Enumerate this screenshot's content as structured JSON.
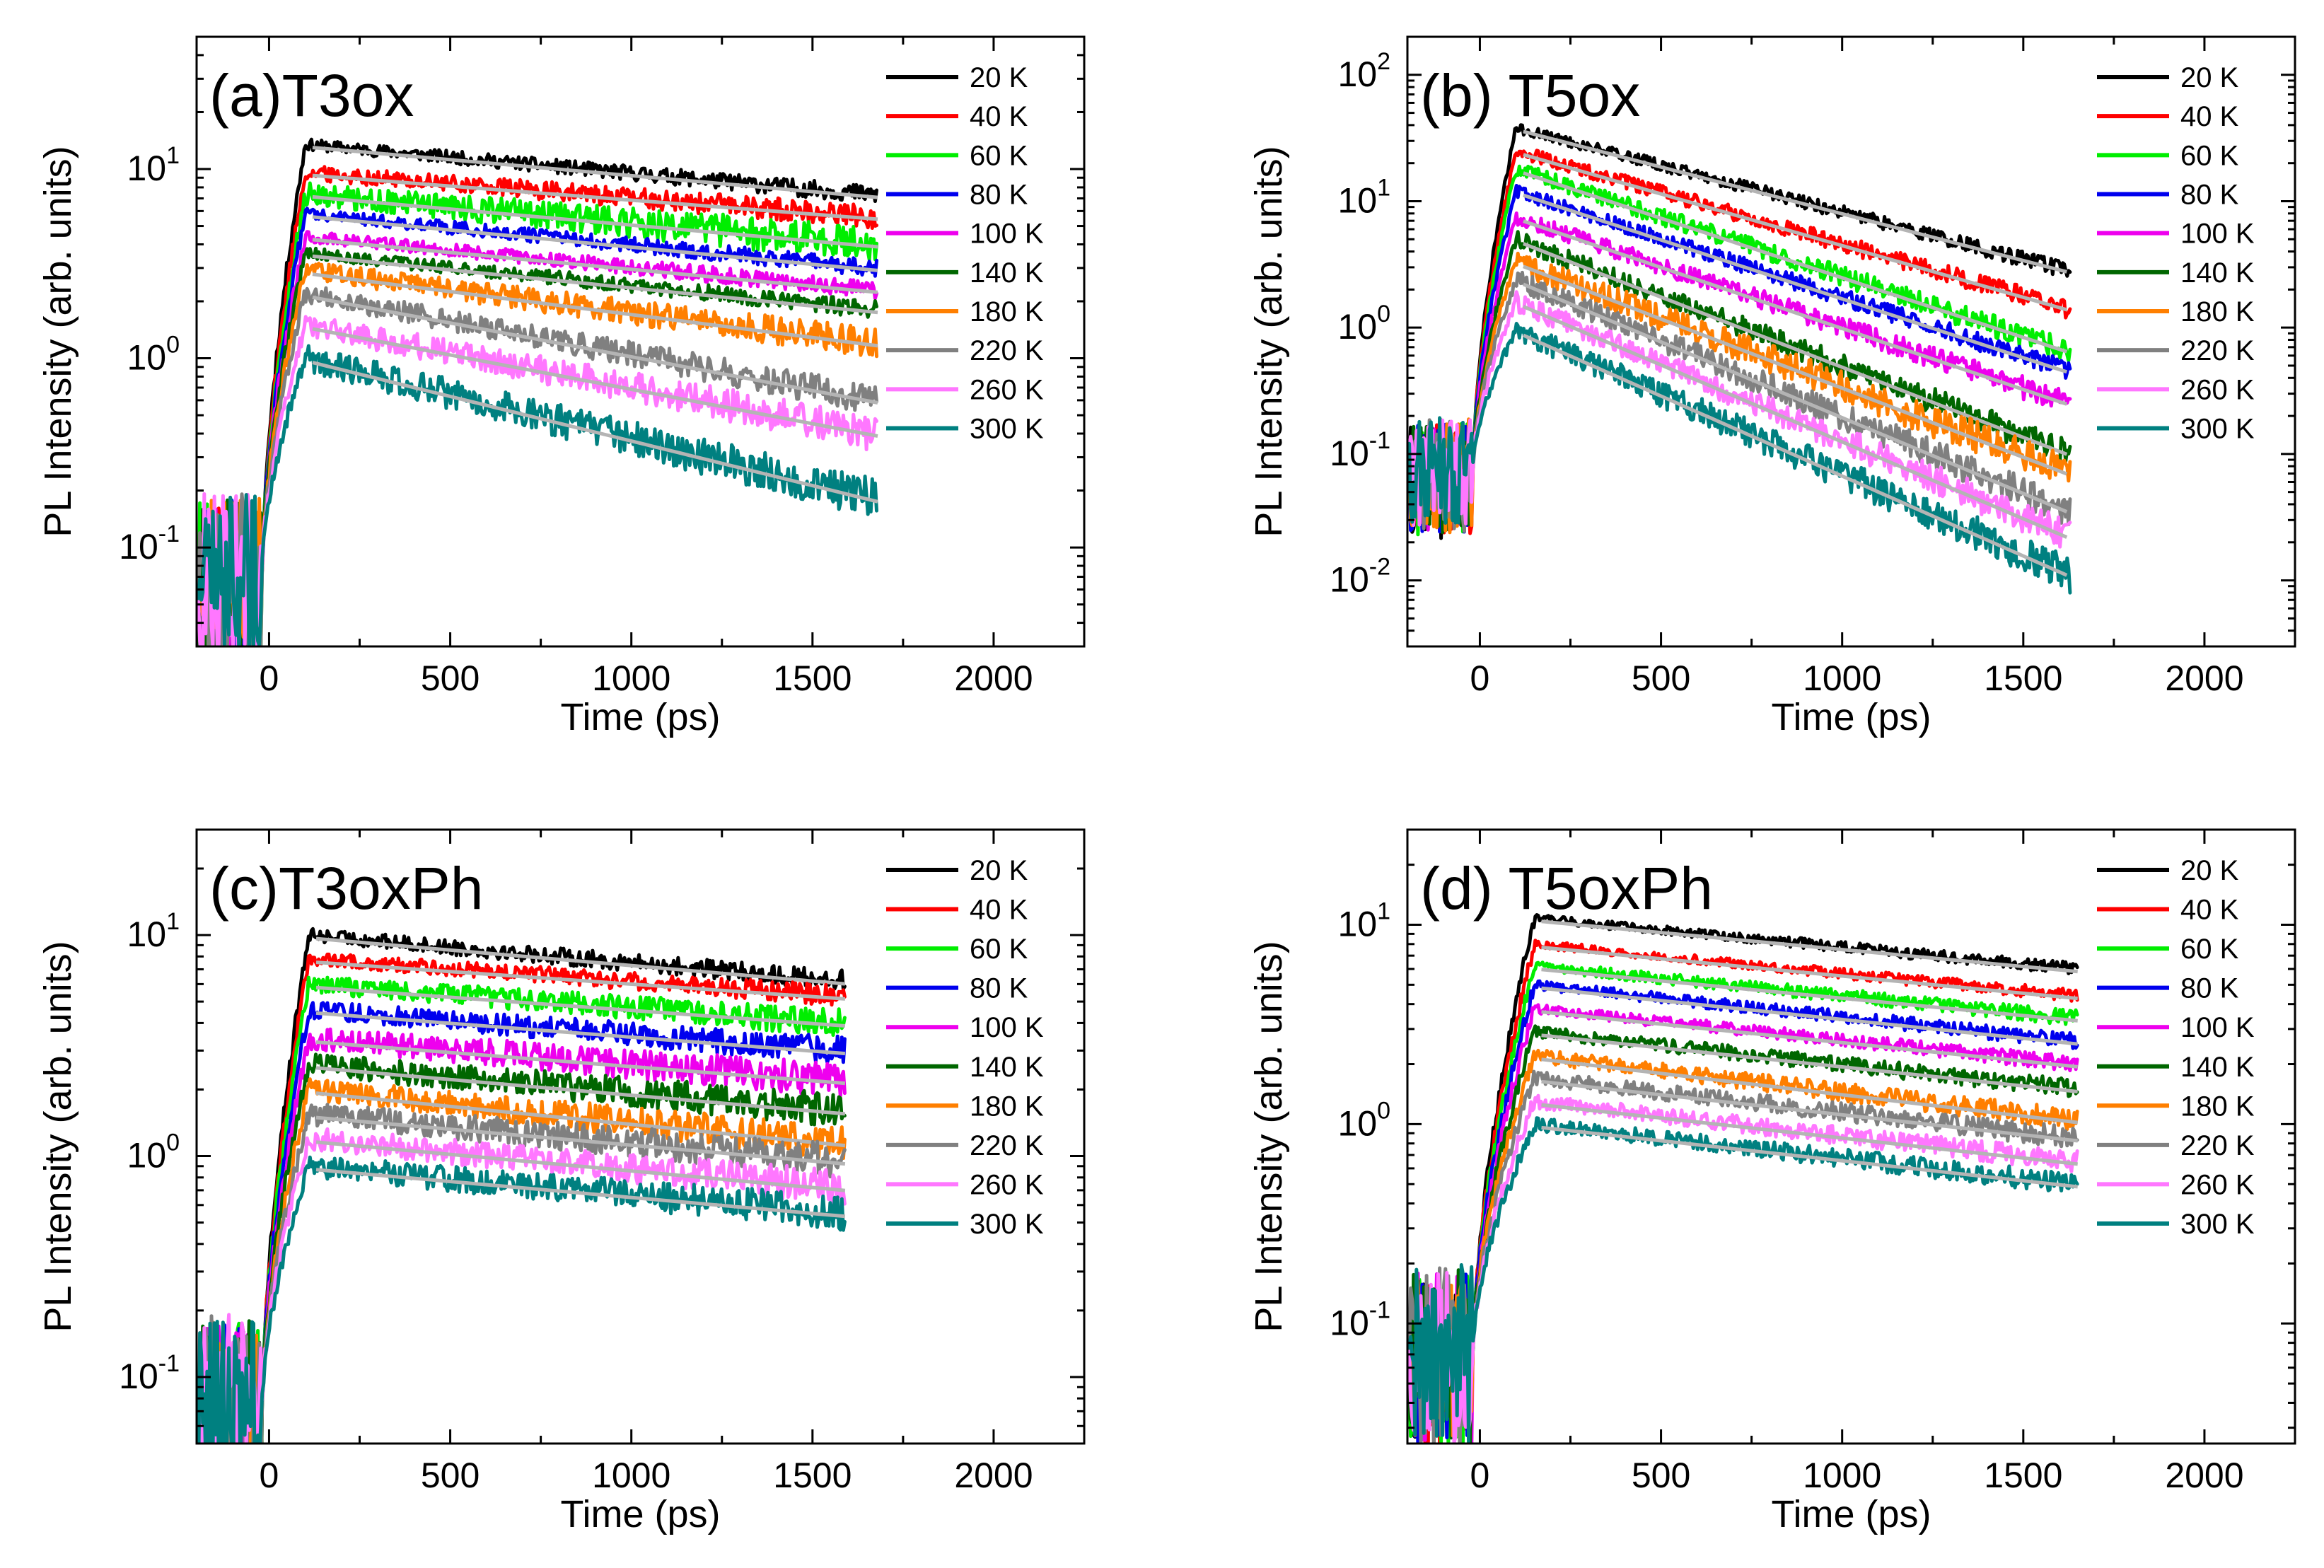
{
  "chart_data": [
    {
      "type": "line",
      "title": "(a)T3ox",
      "xlabel": "Time (ps)",
      "ylabel": "PL Intensity (arb. units)",
      "xscale": "linear",
      "yscale": "log",
      "xlim": [
        -200,
        2250
      ],
      "ylim": [
        0.03,
        50
      ],
      "xticks": [
        0,
        500,
        1000,
        1500,
        2000
      ],
      "xtick_labels": [
        "0",
        "500",
        "1000",
        "1500",
        "2000"
      ],
      "yticks": [
        0.1,
        1,
        10
      ],
      "ytick_labels": [
        {
          "base": "10",
          "exp": "-1"
        },
        {
          "base": "10",
          "exp": "0"
        },
        {
          "base": "10",
          "exp": "1"
        }
      ],
      "legend_position": "top-right",
      "t_peak": 100,
      "t_end": 1680,
      "series": [
        {
          "name": "20 K",
          "color": "#000000",
          "peak": 13.5,
          "end": 7.3,
          "noise": 0.03
        },
        {
          "name": "40 K",
          "color": "#ff0000",
          "peak": 9.6,
          "end": 5.6,
          "noise": 0.04
        },
        {
          "name": "60 K",
          "color": "#00ee00",
          "peak": 7.4,
          "end": 4.0,
          "noise": 0.06
        },
        {
          "name": "80 K",
          "color": "#0000ee",
          "peak": 5.8,
          "end": 3.0,
          "noise": 0.03
        },
        {
          "name": "100 K",
          "color": "#ee00ee",
          "peak": 4.4,
          "end": 2.3,
          "noise": 0.03
        },
        {
          "name": "140 K",
          "color": "#006600",
          "peak": 3.6,
          "end": 1.8,
          "noise": 0.03
        },
        {
          "name": "180 K",
          "color": "#ff7f00",
          "peak": 2.9,
          "end": 1.2,
          "noise": 0.05
        },
        {
          "name": "220 K",
          "color": "#808080",
          "peak": 2.2,
          "end": 0.6,
          "noise": 0.05
        },
        {
          "name": "260 K",
          "color": "#ff77ff",
          "peak": 1.5,
          "end": 0.4,
          "noise": 0.06
        },
        {
          "name": "300 K",
          "color": "#008080",
          "peak": 1.0,
          "end": 0.18,
          "noise": 0.07
        }
      ]
    },
    {
      "type": "line",
      "title": "(b) T5ox",
      "xlabel": "Time (ps)",
      "ylabel": "PL Intensity (arb. units)",
      "xscale": "linear",
      "yscale": "log",
      "xlim": [
        -200,
        2250
      ],
      "ylim": [
        0.003,
        200
      ],
      "xticks": [
        0,
        500,
        1000,
        1500,
        2000
      ],
      "xtick_labels": [
        "0",
        "500",
        "1000",
        "1500",
        "2000"
      ],
      "yticks": [
        0.01,
        0.1,
        1,
        10,
        100
      ],
      "ytick_labels": [
        {
          "base": "10",
          "exp": "-2"
        },
        {
          "base": "10",
          "exp": "-1"
        },
        {
          "base": "10",
          "exp": "0"
        },
        {
          "base": "10",
          "exp": "1"
        },
        {
          "base": "10",
          "exp": "2"
        }
      ],
      "legend_position": "top-right",
      "t_peak": 100,
      "t_end": 1630,
      "series": [
        {
          "name": "20 K",
          "color": "#000000",
          "peak": 38,
          "end": 2.8,
          "noise": 0.04
        },
        {
          "name": "40 K",
          "color": "#ff0000",
          "peak": 25,
          "end": 1.4,
          "noise": 0.05
        },
        {
          "name": "60 K",
          "color": "#00ee00",
          "peak": 18,
          "end": 0.65,
          "noise": 0.06
        },
        {
          "name": "80 K",
          "color": "#0000ee",
          "peak": 12,
          "end": 0.45,
          "noise": 0.05
        },
        {
          "name": "100 K",
          "color": "#ee00ee",
          "peak": 7.5,
          "end": 0.25,
          "noise": 0.06
        },
        {
          "name": "140 K",
          "color": "#006600",
          "peak": 5.0,
          "end": 0.1,
          "noise": 0.07
        },
        {
          "name": "180 K",
          "color": "#ff7f00",
          "peak": 3.3,
          "end": 0.07,
          "noise": 0.09
        },
        {
          "name": "220 K",
          "color": "#808080",
          "peak": 2.4,
          "end": 0.035,
          "noise": 0.08
        },
        {
          "name": "260 K",
          "color": "#ff77ff",
          "peak": 1.6,
          "end": 0.022,
          "noise": 0.08
        },
        {
          "name": "300 K",
          "color": "#008080",
          "peak": 0.95,
          "end": 0.011,
          "noise": 0.09
        }
      ]
    },
    {
      "type": "line",
      "title": "(c)T3oxPh",
      "xlabel": "Time (ps)",
      "ylabel": "PL Intensity (arb. units)",
      "xscale": "linear",
      "yscale": "log",
      "xlim": [
        -200,
        2250
      ],
      "ylim": [
        0.05,
        30
      ],
      "xticks": [
        0,
        500,
        1000,
        1500,
        2000
      ],
      "xtick_labels": [
        "0",
        "500",
        "1000",
        "1500",
        "2000"
      ],
      "yticks": [
        0.1,
        1,
        10
      ],
      "ytick_labels": [
        {
          "base": "10",
          "exp": "-1"
        },
        {
          "base": "10",
          "exp": "0"
        },
        {
          "base": "10",
          "exp": "1"
        }
      ],
      "legend_position": "top-right",
      "t_peak": 110,
      "t_end": 1590,
      "series": [
        {
          "name": "20 K",
          "color": "#000000",
          "peak": 10.0,
          "end": 6.2,
          "noise": 0.03
        },
        {
          "name": "40 K",
          "color": "#ff0000",
          "peak": 7.8,
          "end": 5.3,
          "noise": 0.03
        },
        {
          "name": "60 K",
          "color": "#00ee00",
          "peak": 6.0,
          "end": 4.0,
          "noise": 0.04
        },
        {
          "name": "80 K",
          "color": "#0000ee",
          "peak": 4.6,
          "end": 3.0,
          "noise": 0.04
        },
        {
          "name": "100 K",
          "color": "#ee00ee",
          "peak": 3.4,
          "end": 2.2,
          "noise": 0.05
        },
        {
          "name": "140 K",
          "color": "#006600",
          "peak": 2.6,
          "end": 1.6,
          "noise": 0.05
        },
        {
          "name": "180 K",
          "color": "#ff7f00",
          "peak": 2.0,
          "end": 1.15,
          "noise": 0.05
        },
        {
          "name": "220 K",
          "color": "#808080",
          "peak": 1.55,
          "end": 0.95,
          "noise": 0.05
        },
        {
          "name": "260 K",
          "color": "#ff77ff",
          "peak": 1.2,
          "end": 0.72,
          "noise": 0.05
        },
        {
          "name": "300 K",
          "color": "#008080",
          "peak": 0.9,
          "end": 0.55,
          "noise": 0.05
        }
      ]
    },
    {
      "type": "line",
      "title": "(d) T5oxPh",
      "xlabel": "Time (ps)",
      "ylabel": "PL Intensity (arb. units)",
      "xscale": "linear",
      "yscale": "log",
      "xlim": [
        -200,
        2250
      ],
      "ylim": [
        0.025,
        30
      ],
      "xticks": [
        0,
        500,
        1000,
        1500,
        2000
      ],
      "xtick_labels": [
        "0",
        "500",
        "1000",
        "1500",
        "2000"
      ],
      "yticks": [
        0.1,
        1,
        10
      ],
      "ytick_labels": [
        {
          "base": "10",
          "exp": "-1"
        },
        {
          "base": "10",
          "exp": "0"
        },
        {
          "base": "10",
          "exp": "1"
        }
      ],
      "legend_position": "top-right",
      "t_peak": 150,
      "t_end": 1650,
      "series": [
        {
          "name": "20 K",
          "color": "#000000",
          "peak": 10.8,
          "end": 6.0,
          "noise": 0.02
        },
        {
          "name": "40 K",
          "color": "#ff0000",
          "peak": 8.0,
          "end": 4.4,
          "noise": 0.02
        },
        {
          "name": "60 K",
          "color": "#00ee00",
          "peak": 6.2,
          "end": 3.4,
          "noise": 0.025
        },
        {
          "name": "80 K",
          "color": "#0000ee",
          "peak": 5.0,
          "end": 2.6,
          "noise": 0.025
        },
        {
          "name": "100 K",
          "color": "#ee00ee",
          "peak": 3.8,
          "end": 2.0,
          "noise": 0.025
        },
        {
          "name": "140 K",
          "color": "#006600",
          "peak": 2.9,
          "end": 1.5,
          "noise": 0.03
        },
        {
          "name": "180 K",
          "color": "#ff7f00",
          "peak": 2.2,
          "end": 1.05,
          "noise": 0.035
        },
        {
          "name": "220 K",
          "color": "#808080",
          "peak": 1.7,
          "end": 0.85,
          "noise": 0.035
        },
        {
          "name": "260 K",
          "color": "#ff77ff",
          "peak": 1.3,
          "end": 0.65,
          "noise": 0.035
        },
        {
          "name": "300 K",
          "color": "#008080",
          "peak": 1.0,
          "end": 0.5,
          "noise": 0.035
        }
      ]
    }
  ]
}
